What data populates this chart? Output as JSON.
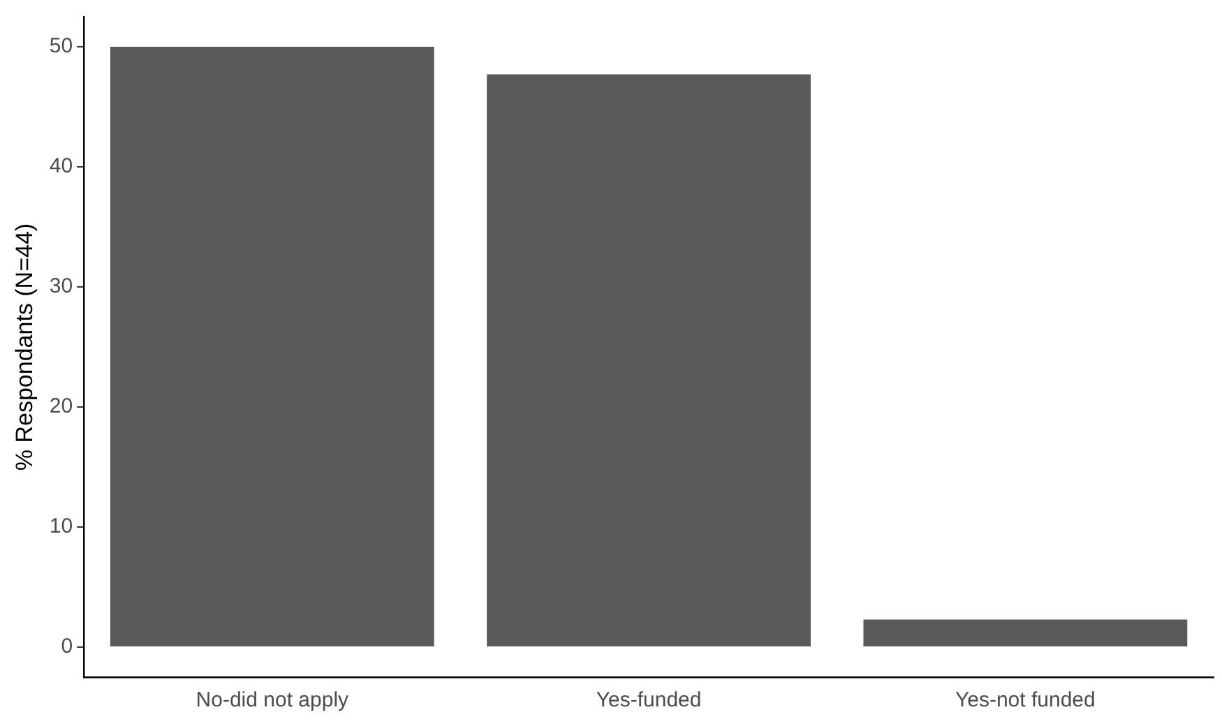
{
  "chart_data": {
    "type": "bar",
    "ylabel": "% Respondants (N=44)",
    "categories": [
      "No-did not apply",
      "Yes-funded",
      "Yes-not funded"
    ],
    "values": [
      50,
      47.7,
      2.3
    ],
    "color": "#595959",
    "ylim": [
      -2.5,
      52.5
    ],
    "yticks": [
      0,
      10,
      20,
      30,
      40,
      50
    ],
    "grid": false,
    "legend": false
  }
}
